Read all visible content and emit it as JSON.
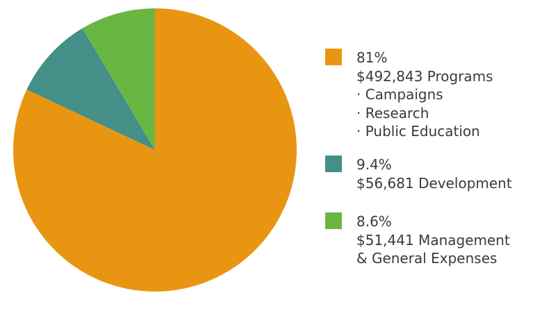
{
  "chart_data": {
    "type": "pie",
    "title": "",
    "start_angle_deg": 0,
    "direction": "clockwise",
    "slices": [
      {
        "percent_label": "81%",
        "amount_label": "$492,843 Programs",
        "sub_items": [
          "· Campaigns",
          "· Research",
          "· Public Education"
        ],
        "value": 492843,
        "color": "#E89612"
      },
      {
        "percent_label": "9.4%",
        "amount_label": "$56,681 Development",
        "sub_items": [],
        "value": 56681,
        "color": "#448F87"
      },
      {
        "percent_label": "8.6%",
        "amount_label": "$51,441 Management",
        "sub_items": [
          "& General Expenses"
        ],
        "value": 51441,
        "color": "#6AB643"
      }
    ],
    "legend_position": "right"
  }
}
